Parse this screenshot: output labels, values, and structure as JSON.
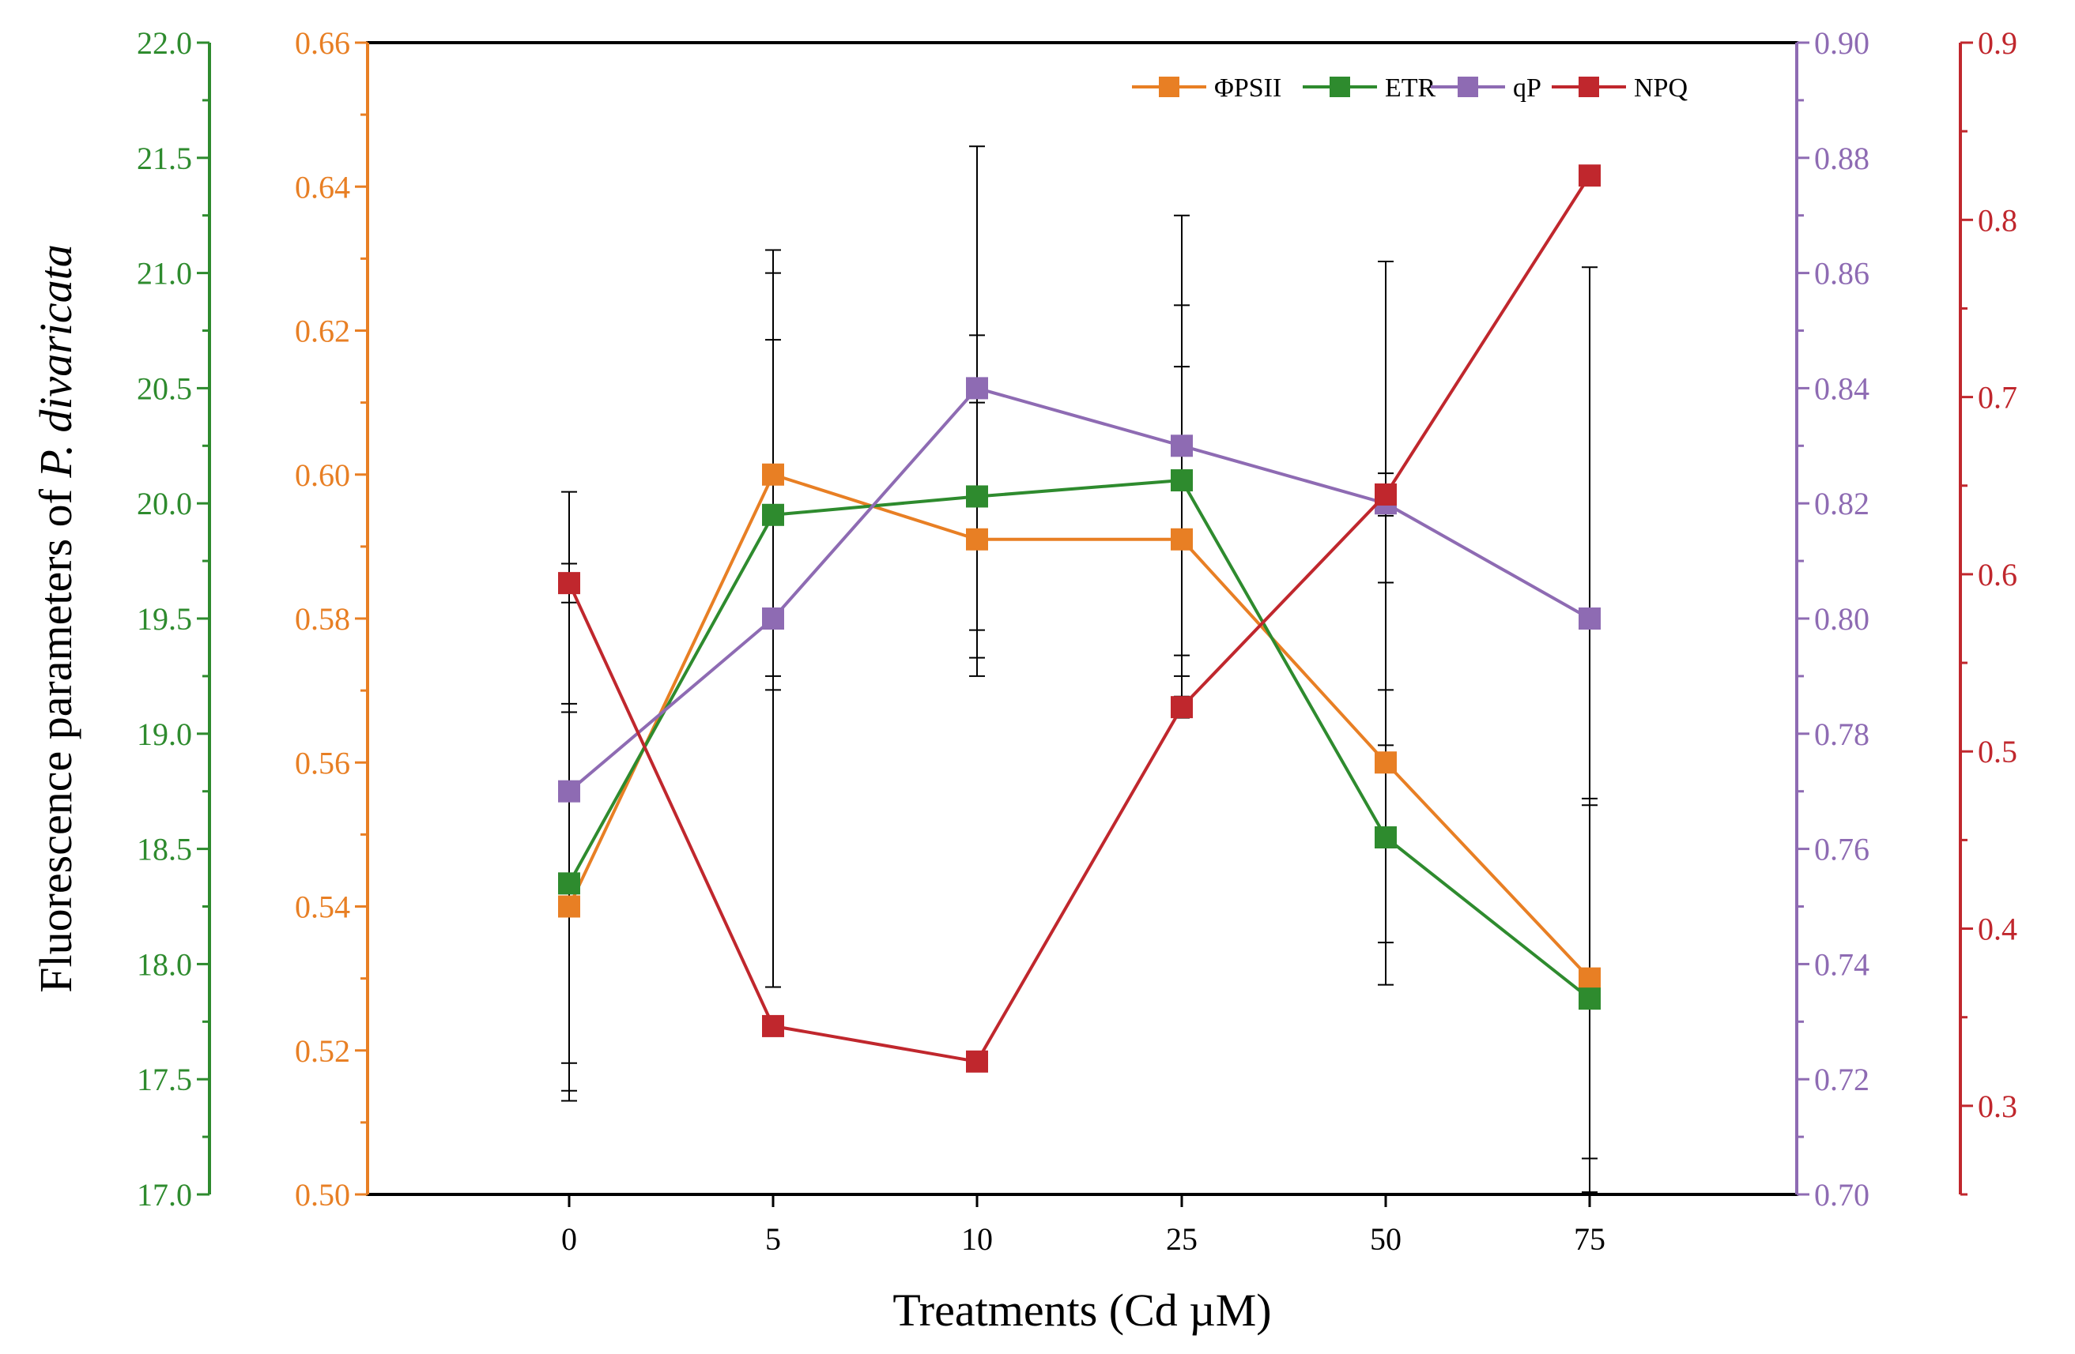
{
  "chart_data": {
    "type": "line",
    "xlabel": "Treatments (Cd µM)",
    "ylabel_prefix": "Fluorescence parameters of ",
    "ylabel_italic": "P. divaricata",
    "categories": [
      "0",
      "5",
      "10",
      "25",
      "50",
      "75"
    ],
    "axes": [
      {
        "id": "etr",
        "color": "#2e8b2e",
        "ylim": [
          17.0,
          22.0
        ],
        "ticks": [
          "17.0",
          "17.5",
          "18.0",
          "18.5",
          "19.0",
          "19.5",
          "20.0",
          "20.5",
          "21.0",
          "21.5",
          "22.0"
        ],
        "minor": true
      },
      {
        "id": "phipsii",
        "color": "#e87f24",
        "ylim": [
          0.5,
          0.66
        ],
        "ticks": [
          "0.50",
          "0.52",
          "0.54",
          "0.56",
          "0.58",
          "0.60",
          "0.62",
          "0.64",
          "0.66"
        ],
        "minor": true
      },
      {
        "id": "qp",
        "color": "#8e6bb3",
        "ylim": [
          0.7,
          0.9
        ],
        "ticks": [
          "0.70",
          "0.72",
          "0.74",
          "0.76",
          "0.78",
          "0.80",
          "0.82",
          "0.84",
          "0.86",
          "0.88",
          "0.90"
        ],
        "minor": true
      },
      {
        "id": "npq",
        "color": "#c0272d",
        "ylim": [
          0.25,
          0.9
        ],
        "ticks": [
          "0.3",
          "0.4",
          "0.5",
          "0.6",
          "0.7",
          "0.8",
          "0.9"
        ],
        "minor": true
      }
    ],
    "series": [
      {
        "name": "ΦPSII",
        "axis": "phipsii",
        "color": "#e87f24",
        "values": [
          0.54,
          0.6,
          0.591,
          0.591,
          0.56,
          0.53
        ],
        "errors": [
          0.027,
          0.028,
          0.019,
          0.024,
          0.025,
          0.025
        ]
      },
      {
        "name": "ETR",
        "axis": "etr",
        "color": "#2e8b2e",
        "values": [
          18.35,
          19.95,
          20.03,
          20.1,
          18.55,
          17.85
        ],
        "errors": [
          0.78,
          0.76,
          0.7,
          0.76,
          0.64,
          0.84
        ]
      },
      {
        "name": "qP",
        "axis": "qp",
        "color": "#8e6bb3",
        "values": [
          0.77,
          0.8,
          0.84,
          0.83,
          0.82,
          0.8
        ],
        "errors": [
          0.052,
          0.064,
          0.042,
          0.04,
          0.042,
          0.061
        ]
      },
      {
        "name": "NPQ",
        "axis": "npq",
        "color": "#c0272d",
        "values": [
          0.595,
          0.345,
          0.325,
          0.525,
          0.645,
          0.825
        ],
        "errors": [
          0.011,
          0.0,
          0.0,
          0.006,
          0.012,
          0.0
        ]
      }
    ],
    "legend": {
      "placement": "top-right"
    }
  }
}
